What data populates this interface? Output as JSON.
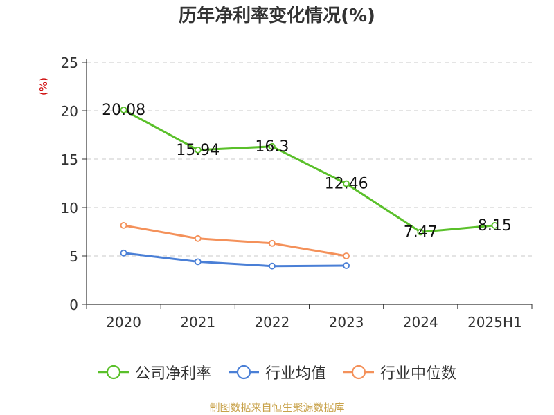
{
  "chart_data": {
    "type": "line",
    "title": "历年净利率变化情况(%)",
    "ylabel": "(%)",
    "xlabel": "",
    "categories": [
      "2020",
      "2021",
      "2022",
      "2023",
      "2024",
      "2025H1"
    ],
    "ylim": [
      0,
      25
    ],
    "yticks": [
      0,
      5,
      10,
      15,
      20,
      25
    ],
    "grid": "horizontal-dashed",
    "legend": "bottom",
    "series": [
      {
        "name": "公司净利率",
        "color": "#5ac02a",
        "values": [
          20.08,
          15.94,
          16.3,
          12.46,
          7.47,
          8.15
        ],
        "labels": [
          "20.08",
          "15.94",
          "16.3",
          "12.46",
          "7.47",
          "8.15"
        ]
      },
      {
        "name": "行业均值",
        "color": "#4a7fd6",
        "values": [
          5.3,
          4.4,
          3.95,
          4.0,
          null,
          null
        ]
      },
      {
        "name": "行业中位数",
        "color": "#f4915a",
        "values": [
          8.15,
          6.8,
          6.3,
          5.0,
          null,
          null
        ]
      }
    ]
  },
  "source": "制图数据来自恒生聚源数据库"
}
